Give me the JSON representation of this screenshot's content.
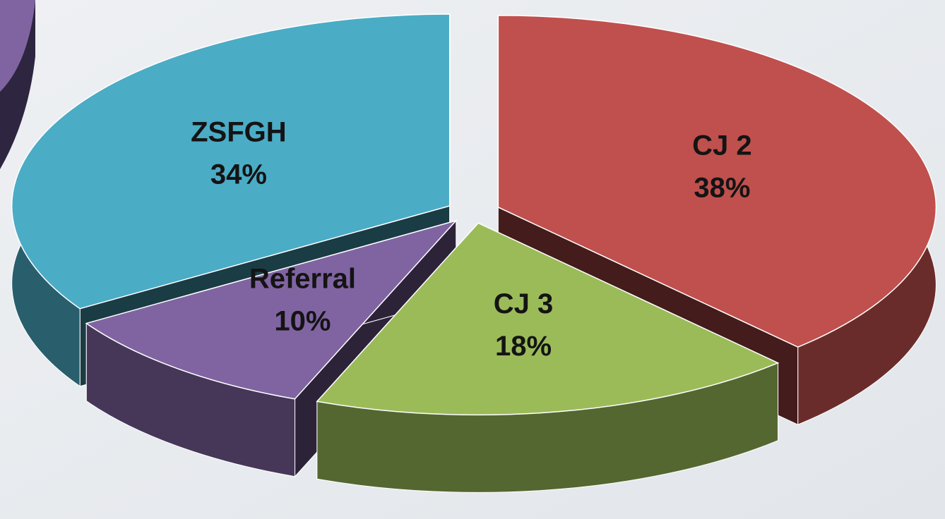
{
  "chart_data": {
    "type": "pie",
    "categories": [
      "CJ 2",
      "CJ 3",
      "Referral",
      "ZSFGH"
    ],
    "values": [
      38,
      18,
      10,
      34
    ],
    "value_labels": [
      "38%",
      "18%",
      "10%",
      "34%"
    ],
    "colors": [
      "#c0504d",
      "#9bbb59",
      "#8064a2",
      "#4bacc6"
    ]
  }
}
